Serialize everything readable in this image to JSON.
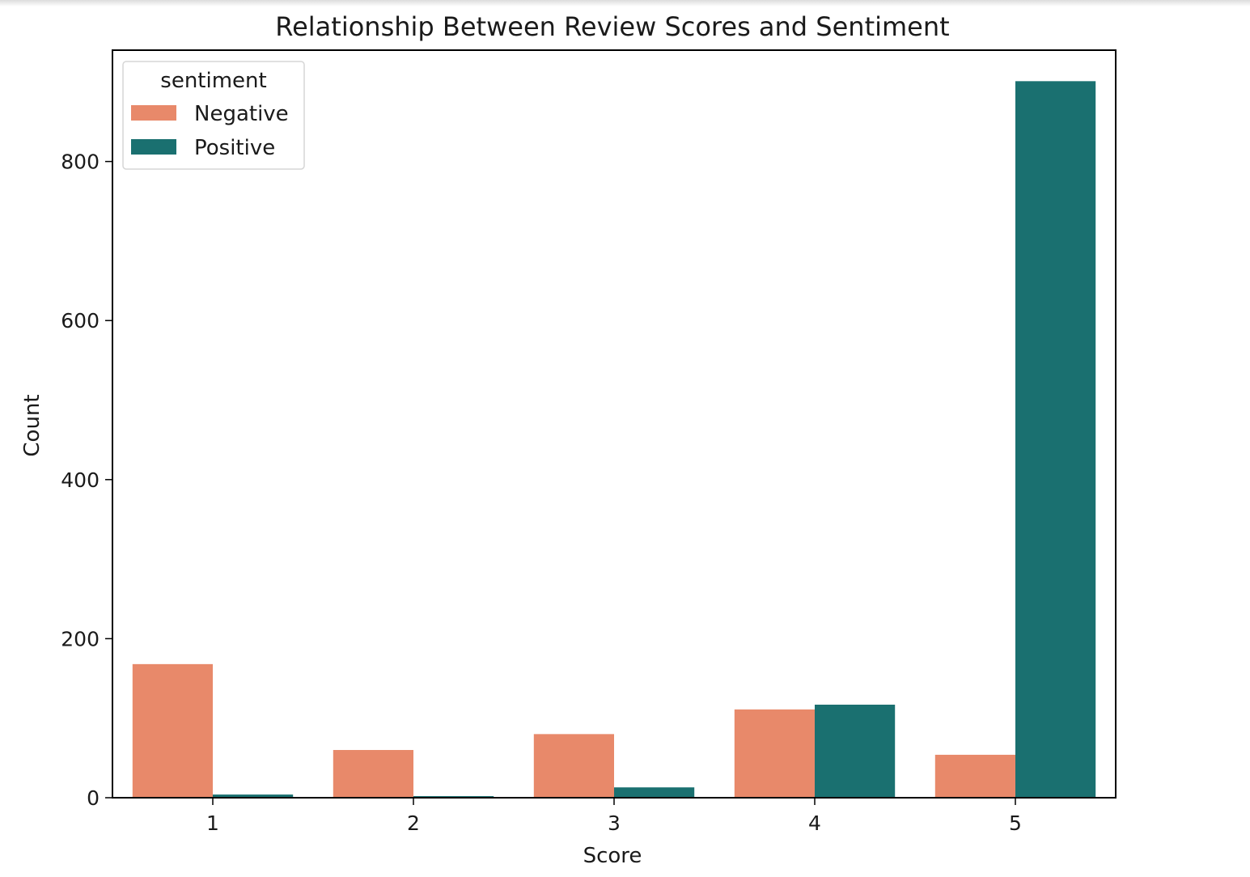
{
  "chart_data": {
    "type": "bar",
    "title": "Relationship Between Review Scores and Sentiment",
    "xlabel": "Score",
    "ylabel": "Count",
    "categories": [
      "1",
      "2",
      "3",
      "4",
      "5"
    ],
    "ylim": [
      0,
      940
    ],
    "yticks": [
      0,
      200,
      400,
      600,
      800
    ],
    "grid": false,
    "legend": {
      "title": "sentiment",
      "placement": "top-left"
    },
    "series": [
      {
        "name": "Negative",
        "color": "#E8896A",
        "values": [
          168,
          60,
          80,
          111,
          54
        ]
      },
      {
        "name": "Positive",
        "color": "#1A7070",
        "values": [
          4,
          2,
          13,
          117,
          901
        ]
      }
    ]
  }
}
